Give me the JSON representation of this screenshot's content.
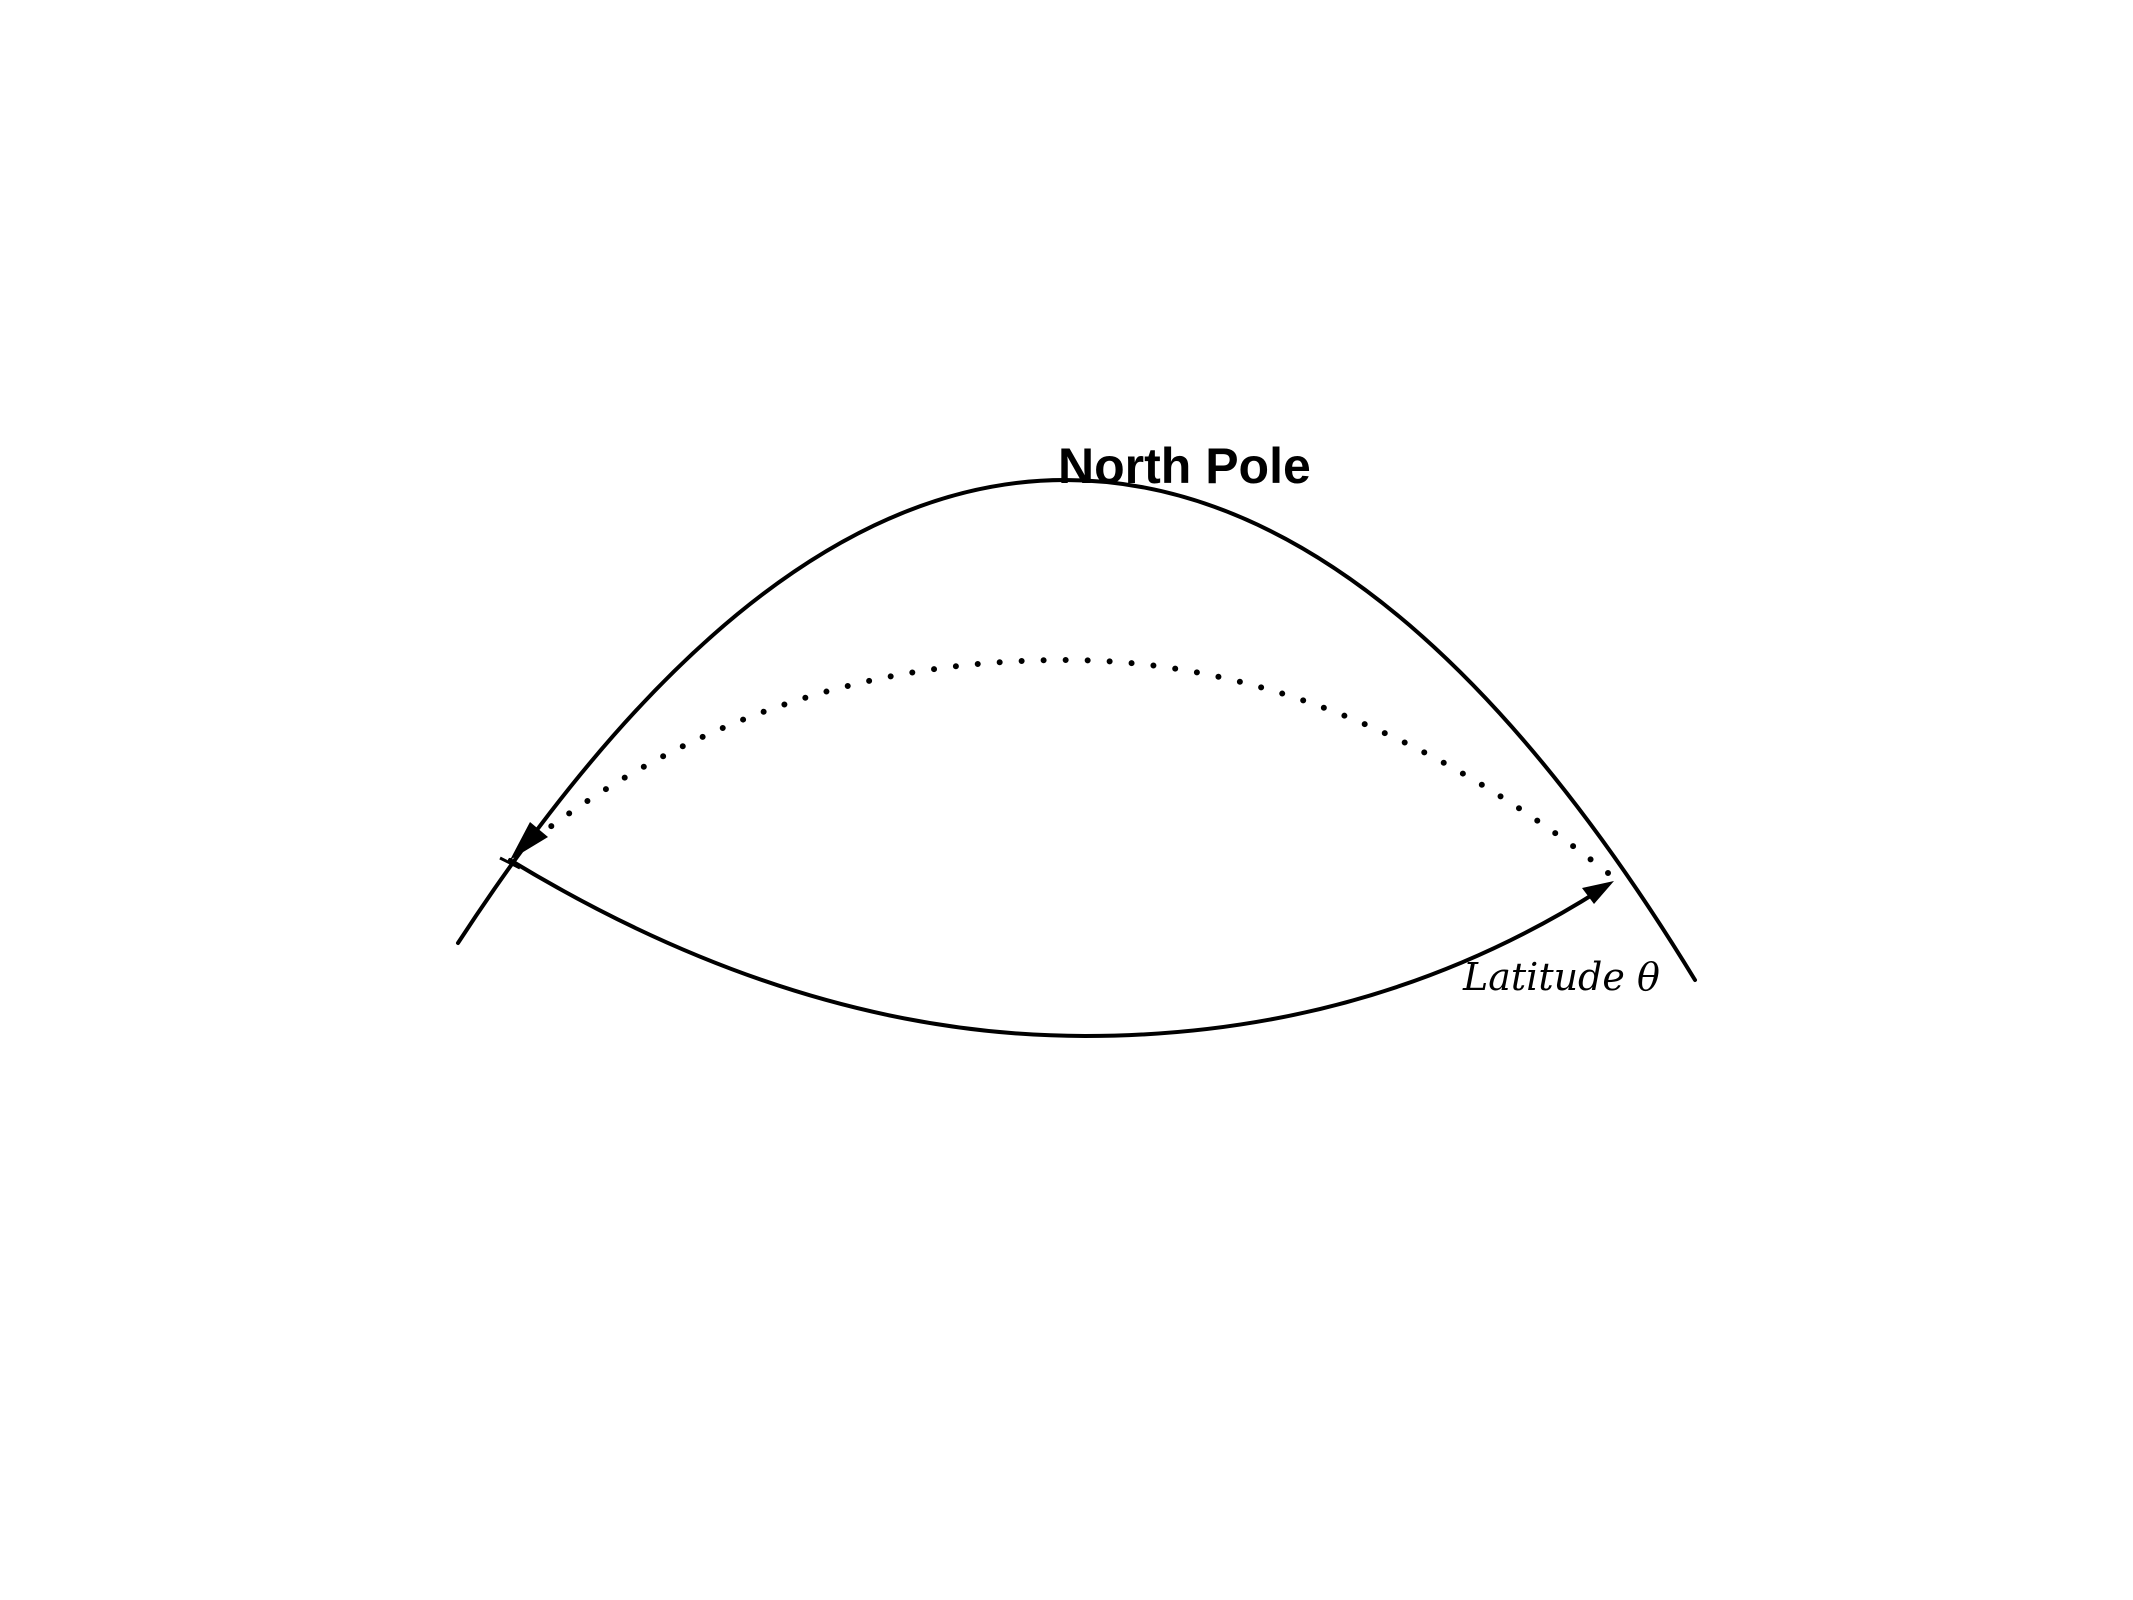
{
  "diagram": {
    "title": "North Pole",
    "latitude_label": "Latitude θ"
  }
}
